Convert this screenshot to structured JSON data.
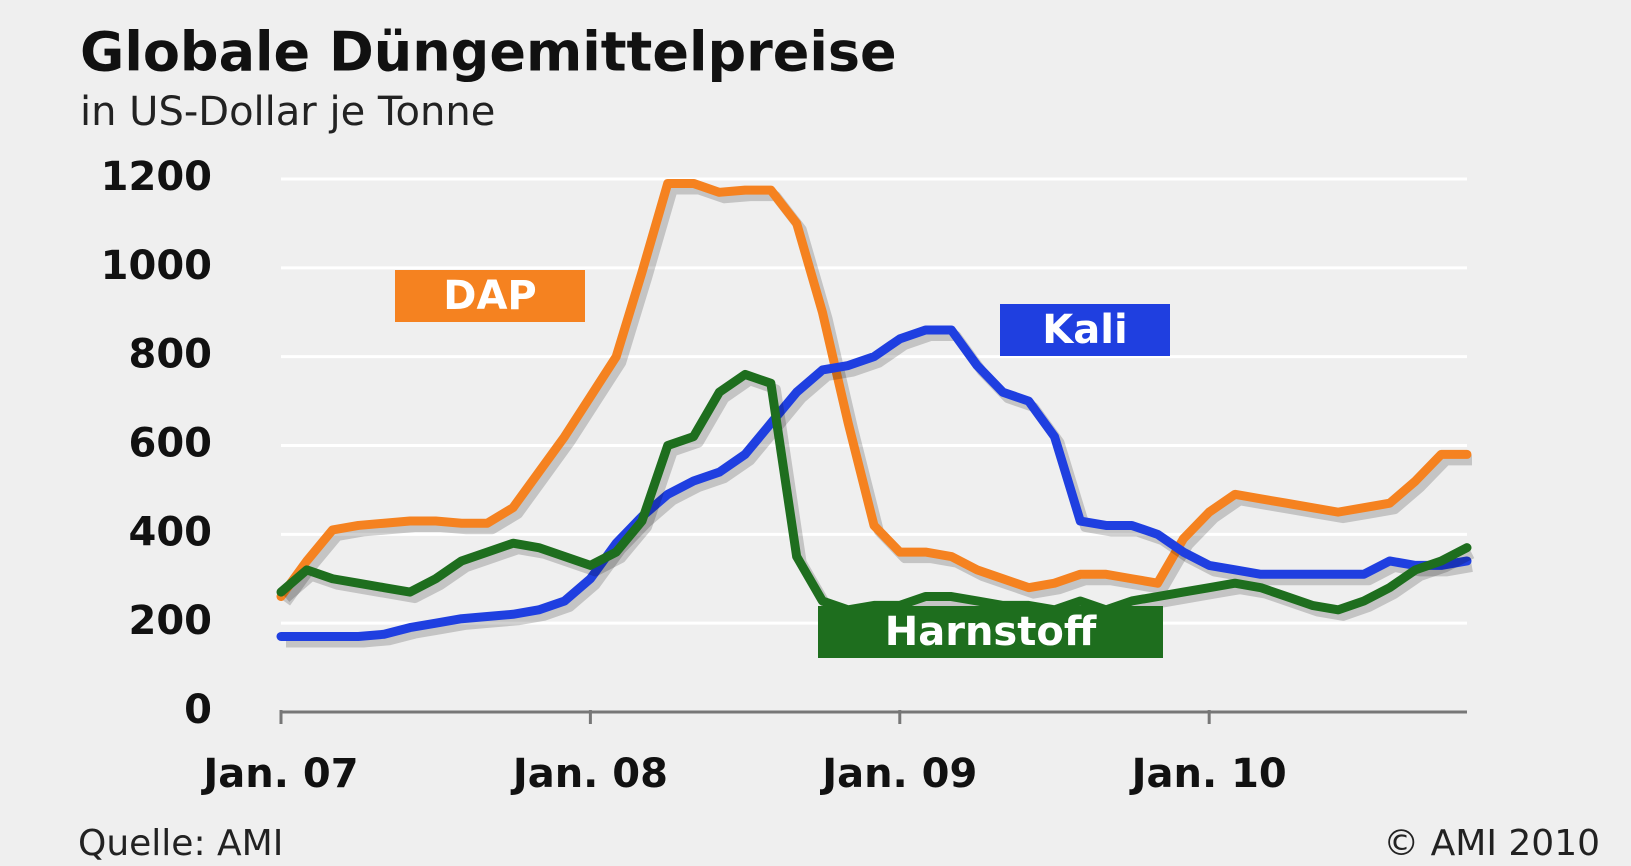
{
  "chart_data": {
    "type": "line",
    "title": "Globale Düngemittelpreise",
    "subtitle": "in US-Dollar je Tonne",
    "source": "Quelle: AMI",
    "copyright": "© AMI 2010",
    "x": [
      0,
      1,
      2,
      3,
      4,
      5,
      6,
      7,
      8,
      9,
      10,
      11,
      12,
      13,
      14,
      15,
      16,
      17,
      18,
      19,
      20,
      21,
      22,
      23,
      24,
      25,
      26,
      27,
      28,
      29,
      30,
      31,
      32,
      33,
      34,
      35,
      36,
      37,
      38,
      39,
      40,
      41,
      42,
      43,
      44,
      45,
      46
    ],
    "xlim": [
      0,
      46
    ],
    "xticks": [
      {
        "value": 0,
        "label": "Jan. 07"
      },
      {
        "value": 12,
        "label": "Jan. 08"
      },
      {
        "value": 24,
        "label": "Jan. 09"
      },
      {
        "value": 36,
        "label": "Jan. 10"
      }
    ],
    "ylim": [
      0,
      1200
    ],
    "yticks": [
      0,
      200,
      400,
      600,
      800,
      1000,
      1200
    ],
    "grid": true,
    "series": [
      {
        "name": "DAP",
        "color": "#f58220",
        "values": [
          260,
          340,
          410,
          420,
          425,
          430,
          430,
          425,
          425,
          460,
          540,
          620,
          710,
          800,
          990,
          1190,
          1190,
          1170,
          1175,
          1175,
          1100,
          900,
          650,
          420,
          360,
          360,
          350,
          320,
          300,
          280,
          290,
          310,
          310,
          300,
          290,
          390,
          450,
          490,
          480,
          470,
          460,
          450,
          460,
          470,
          520,
          580,
          580
        ]
      },
      {
        "name": "Kali",
        "color": "#1f3fe0",
        "values": [
          170,
          170,
          170,
          170,
          175,
          190,
          200,
          210,
          215,
          220,
          230,
          250,
          300,
          380,
          440,
          490,
          520,
          540,
          580,
          650,
          720,
          770,
          780,
          800,
          840,
          860,
          860,
          780,
          720,
          700,
          620,
          430,
          420,
          420,
          400,
          360,
          330,
          320,
          310,
          310,
          310,
          310,
          310,
          340,
          330,
          330,
          340
        ]
      },
      {
        "name": "Harnstoff",
        "color": "#1e6e1e",
        "values": [
          270,
          320,
          300,
          290,
          280,
          270,
          300,
          340,
          360,
          380,
          370,
          350,
          330,
          360,
          430,
          600,
          620,
          720,
          760,
          740,
          350,
          250,
          230,
          240,
          240,
          260,
          260,
          250,
          240,
          240,
          230,
          250,
          230,
          250,
          260,
          270,
          280,
          290,
          280,
          260,
          240,
          230,
          250,
          280,
          320,
          340,
          370
        ]
      }
    ]
  }
}
